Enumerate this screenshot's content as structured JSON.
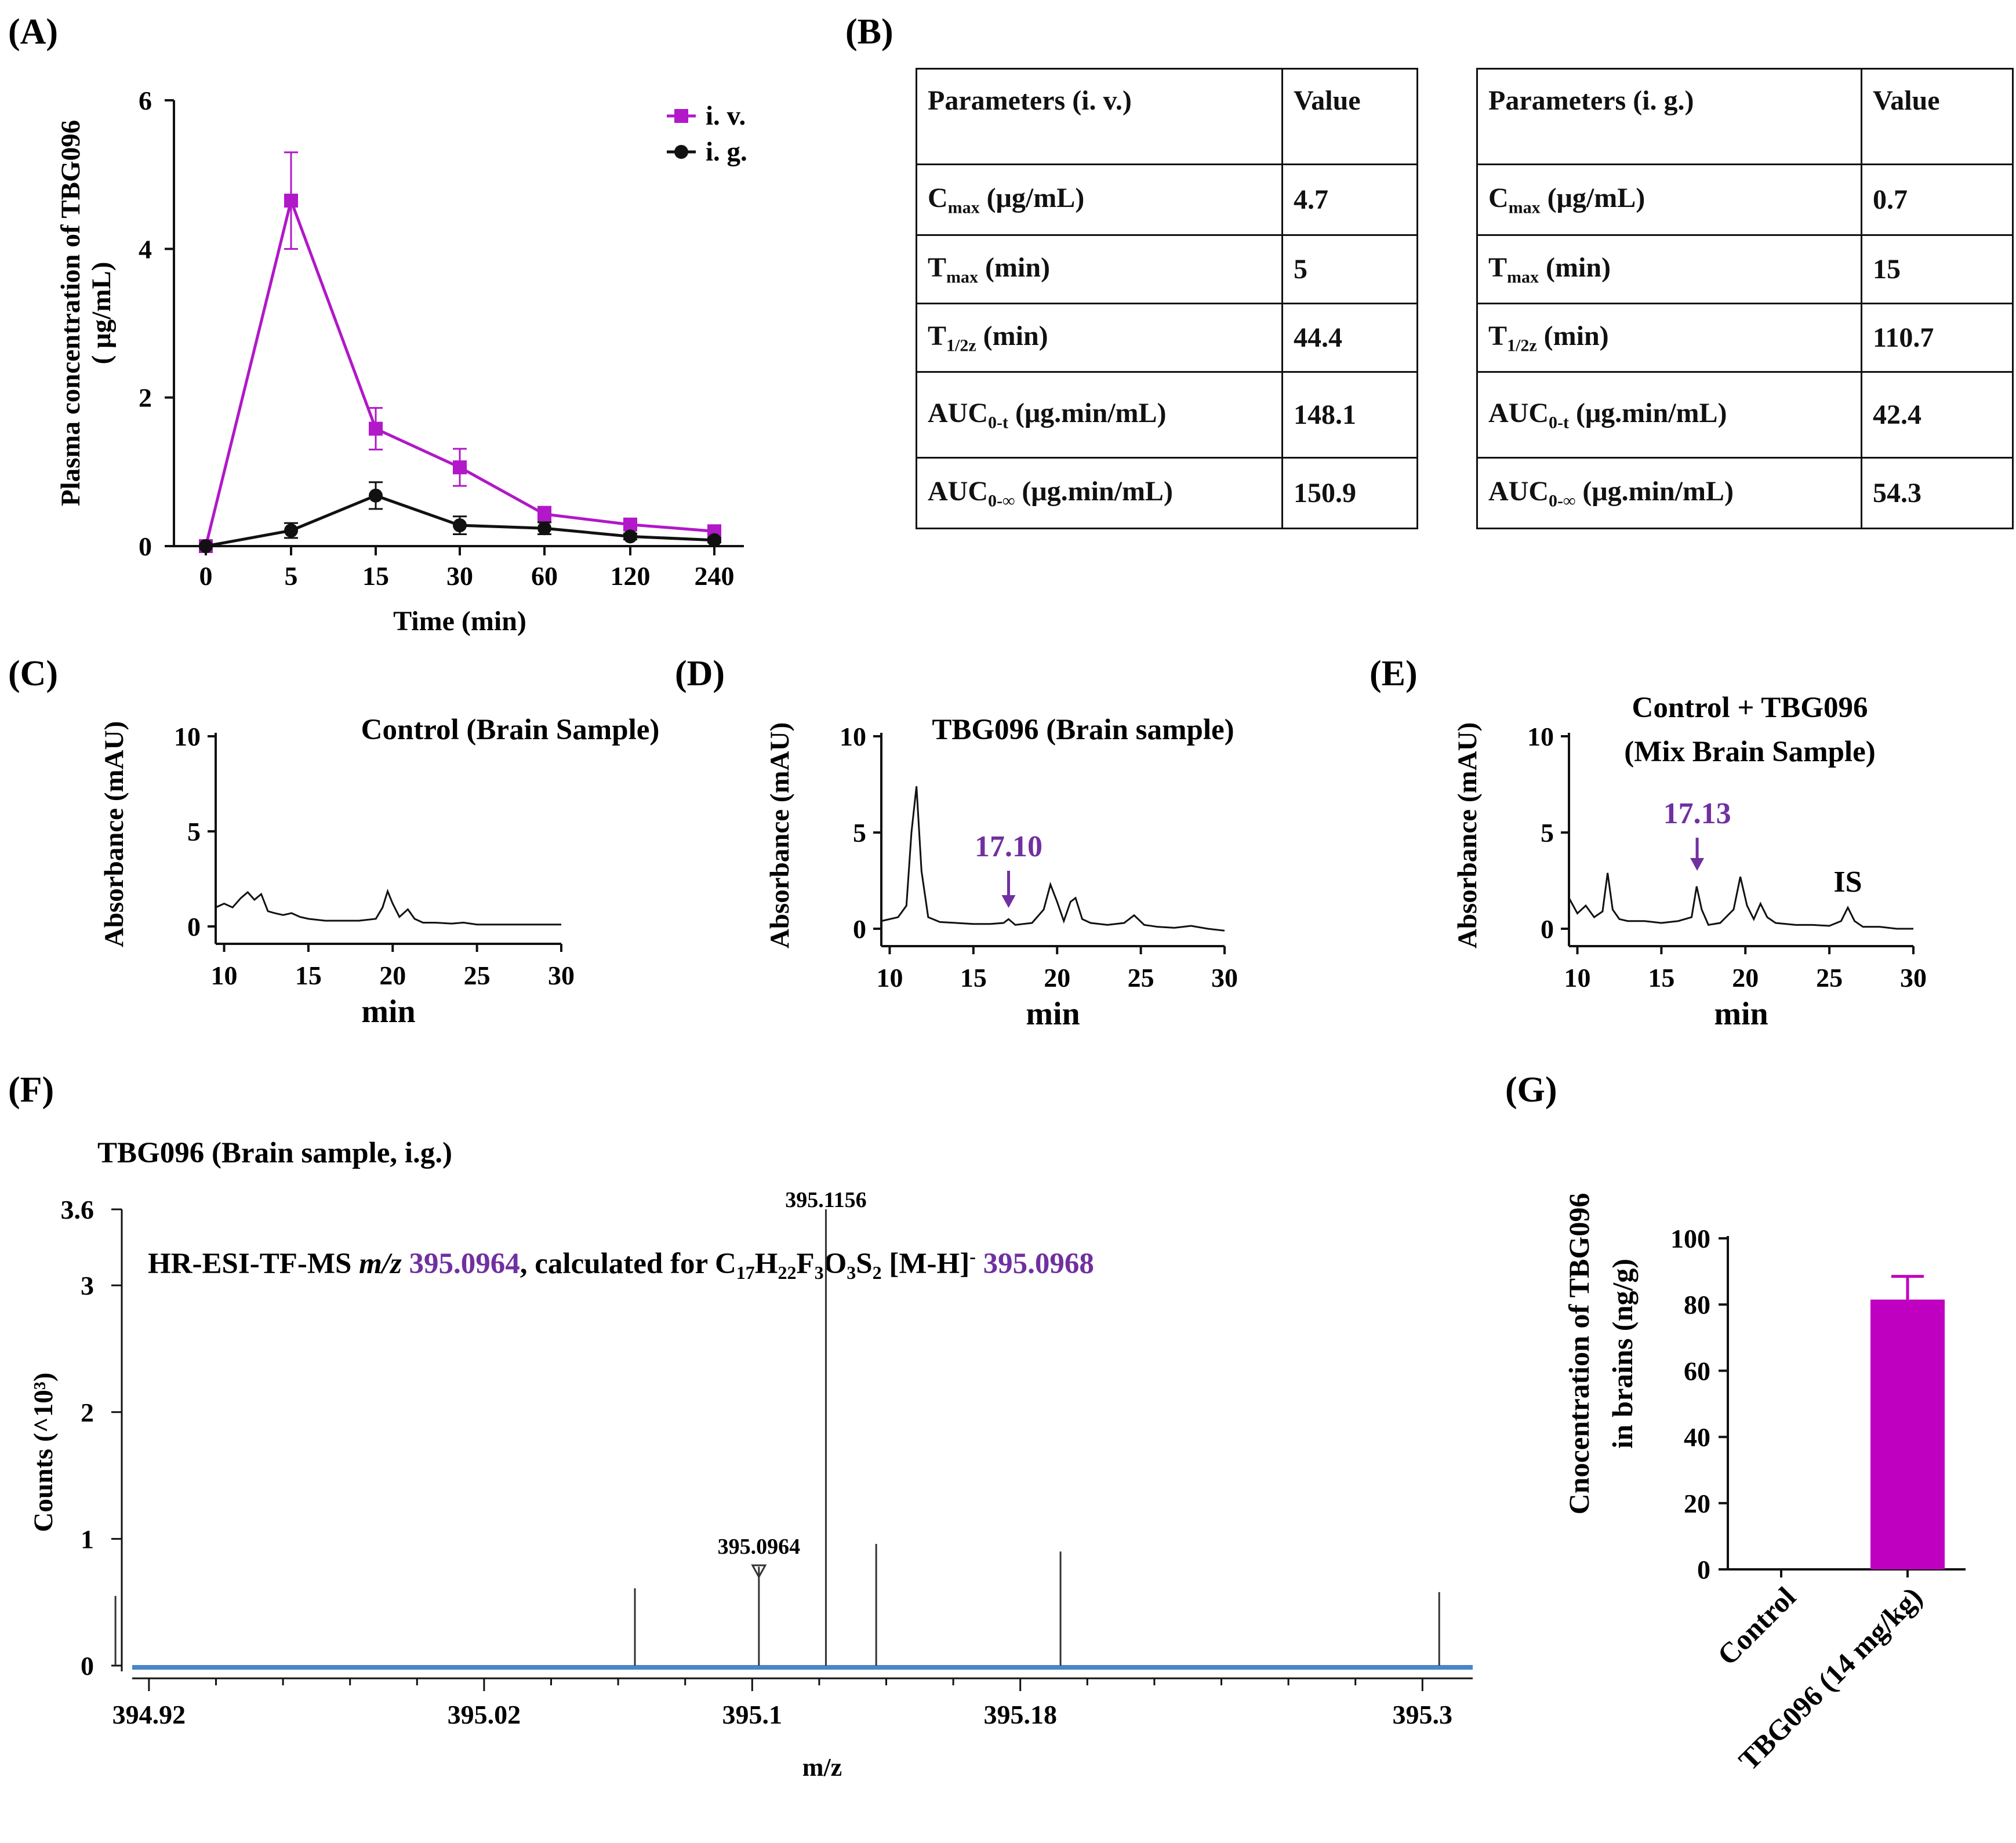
{
  "colors": {
    "iv": "#B118C8",
    "ig": "#111111",
    "annotation": "#7030A0",
    "bar": "#C000C0",
    "baseline": "#4A86C8"
  },
  "panels": {
    "A": "(A)",
    "B": "(B)",
    "C": "(C)",
    "D": "(D)",
    "E": "(E)",
    "F": "(F)",
    "G": "(G)"
  },
  "table_iv": {
    "header": [
      "Parameters (i. v.)",
      "Value"
    ],
    "rows": [
      {
        "name": "C",
        "sub": "max",
        "unit": " (μg/mL)",
        "value": "4.7"
      },
      {
        "name": "T",
        "sub": "max",
        "unit": " (min)",
        "value": "5"
      },
      {
        "name": "T",
        "sub": "1/2z",
        "unit": " (min)",
        "value": "44.4"
      },
      {
        "name": "AUC",
        "sub": "0-t",
        "unit": " (μg.min/mL)",
        "value": "148.1"
      },
      {
        "name": "AUC",
        "sub": "0-∞",
        "unit": " (μg.min/mL)",
        "value": "150.9"
      }
    ]
  },
  "table_ig": {
    "header": [
      "Parameters (i. g.)",
      "Value"
    ],
    "rows": [
      {
        "name": "C",
        "sub": "max",
        "unit": " (μg/mL)",
        "value": "0.7"
      },
      {
        "name": "T",
        "sub": "max",
        "unit": " (min)",
        "value": "15"
      },
      {
        "name": "T",
        "sub": "1/2z",
        "unit": " (min)",
        "value": "110.7"
      },
      {
        "name": "AUC",
        "sub": "0-t",
        "unit": " (μg.min/mL)",
        "value": "42.4"
      },
      {
        "name": "AUC",
        "sub": "0-∞",
        "unit": " (μg.min/mL)",
        "value": "54.3"
      }
    ]
  },
  "chart_data": [
    {
      "panel": "A",
      "type": "line",
      "xlabel": "Time (min)",
      "ylabel_line1": "Plasma concentration of TBG096",
      "ylabel_line2": "( μg/mL)",
      "categories": [
        "0",
        "5",
        "15",
        "30",
        "60",
        "120",
        "240"
      ],
      "ylim": [
        0,
        6
      ],
      "yticks": [
        0,
        2,
        4,
        6
      ],
      "legend_position": "top-right",
      "series": [
        {
          "name": "i. v.",
          "marker": "square",
          "values": [
            0,
            4.65,
            1.58,
            1.06,
            0.43,
            0.29,
            0.2
          ],
          "errors": [
            0,
            0.65,
            0.28,
            0.25,
            0.1,
            0.05,
            0.04
          ]
        },
        {
          "name": "i. g.",
          "marker": "circle",
          "values": [
            0,
            0.21,
            0.68,
            0.28,
            0.24,
            0.13,
            0.08
          ],
          "errors": [
            0,
            0.1,
            0.18,
            0.12,
            0.08,
            0.04,
            0.03
          ]
        }
      ]
    },
    {
      "panel": "C",
      "type": "line",
      "title": "Control (Brain Sample)",
      "xlabel": "min",
      "ylabel": "Absorbance (mAU)",
      "xlim": [
        9.5,
        30
      ],
      "xticks": [
        10,
        15,
        20,
        25,
        30
      ],
      "ylim": [
        -0.5,
        10
      ],
      "yticks": [
        0,
        5,
        10
      ],
      "x": [
        9.5,
        10,
        10.5,
        11,
        11.4,
        11.8,
        12.2,
        12.6,
        13,
        13.5,
        14,
        14.5,
        15,
        16,
        17,
        18,
        19,
        19.4,
        19.7,
        20,
        20.4,
        20.9,
        21.3,
        21.8,
        22.5,
        23.5,
        24.2,
        25,
        27,
        28,
        30
      ],
      "values": [
        1.0,
        1.2,
        1.0,
        1.5,
        1.8,
        1.4,
        1.7,
        0.8,
        0.7,
        0.6,
        0.7,
        0.5,
        0.4,
        0.3,
        0.3,
        0.3,
        0.4,
        1.0,
        1.85,
        1.2,
        0.5,
        0.9,
        0.4,
        0.2,
        0.2,
        0.15,
        0.2,
        0.1,
        0.1,
        0.1,
        0.1
      ]
    },
    {
      "panel": "D",
      "type": "line",
      "title": "TBG096 (Brain sample)",
      "xlabel": "min",
      "ylabel": "Absorbance (mAU)",
      "annotation": "17.10",
      "annotation_x": 17.1,
      "xlim": [
        9.5,
        30
      ],
      "xticks": [
        10,
        15,
        20,
        25,
        30
      ],
      "ylim": [
        -0.5,
        10
      ],
      "yticks": [
        0,
        5,
        10
      ],
      "x": [
        9.5,
        10.5,
        11,
        11.3,
        11.6,
        11.9,
        12.3,
        13,
        14,
        15,
        16,
        16.8,
        17.1,
        17.5,
        18.5,
        19.2,
        19.6,
        20,
        20.4,
        20.8,
        21.1,
        21.5,
        22,
        23,
        24,
        24.6,
        25.2,
        26,
        27,
        28,
        29,
        30
      ],
      "values": [
        0.4,
        0.6,
        1.2,
        5.0,
        7.4,
        3.0,
        0.6,
        0.35,
        0.3,
        0.25,
        0.25,
        0.3,
        0.5,
        0.2,
        0.3,
        1.0,
        2.3,
        1.4,
        0.4,
        1.4,
        1.6,
        0.5,
        0.3,
        0.2,
        0.3,
        0.7,
        0.2,
        0.1,
        0.05,
        0.15,
        0.0,
        -0.1
      ]
    },
    {
      "panel": "E",
      "type": "line",
      "title_line1": "Control + TBG096",
      "title_line2": "(Mix Brain Sample)",
      "xlabel": "min",
      "ylabel": "Absorbance (mAU)",
      "annotations": [
        {
          "text": "17.13",
          "x": 17.13
        }
      ],
      "peak_label": "IS",
      "peak_label_x": 26.1,
      "xlim": [
        9.5,
        30
      ],
      "xticks": [
        10,
        15,
        20,
        25,
        30
      ],
      "ylim": [
        -0.5,
        10
      ],
      "yticks": [
        0,
        5,
        10
      ],
      "x": [
        9.5,
        10,
        10.5,
        11,
        11.5,
        11.8,
        12.1,
        12.5,
        13,
        14,
        15,
        16,
        16.8,
        17.1,
        17.4,
        17.8,
        18.5,
        19.3,
        19.7,
        20.1,
        20.5,
        20.9,
        21.3,
        21.8,
        23,
        24,
        25,
        25.7,
        26.1,
        26.5,
        27,
        28,
        29,
        30
      ],
      "values": [
        1.6,
        0.8,
        1.2,
        0.6,
        0.9,
        2.9,
        1.0,
        0.5,
        0.4,
        0.4,
        0.3,
        0.4,
        0.6,
        2.2,
        1.0,
        0.2,
        0.3,
        1.0,
        2.7,
        1.2,
        0.5,
        1.3,
        0.6,
        0.3,
        0.2,
        0.2,
        0.15,
        0.4,
        1.1,
        0.4,
        0.1,
        0.1,
        0.0,
        0.0
      ]
    },
    {
      "panel": "F",
      "type": "bar",
      "title": "TBG096 (Brain sample, i.g.)",
      "annotation_parts": {
        "prefix": "HR-ESI-TF-MS ",
        "mz": "m/z",
        "measured": " 395.0964",
        "mid": ", calculated for C",
        "s17": "17",
        "h": "H",
        "s22": "22",
        "f": "F",
        "s3a": "3",
        "o": "O",
        "s3b": "3",
        "sS": "S",
        "s2": "2",
        "mh": " [M-H]",
        "minus": "-",
        "calc": " 395.0968"
      },
      "xlabel": "m/z",
      "ylabel": "Counts (^10³)",
      "xlim": [
        394.915,
        395.315
      ],
      "xticks": [
        "394.92",
        "395.02",
        "395.1",
        "395.18",
        "395.3"
      ],
      "ylim": [
        0,
        3.6
      ],
      "yticks": [
        "0",
        "1",
        "2",
        "3",
        "3.6"
      ],
      "x": [
        394.91,
        395.065,
        395.102,
        395.122,
        395.137,
        395.192,
        395.305
      ],
      "values": [
        0.55,
        0.61,
        0.78,
        3.6,
        0.96,
        0.9,
        0.58
      ],
      "peak_labels": [
        "395.1156",
        "395.0964"
      ]
    },
    {
      "panel": "G",
      "type": "bar",
      "ylabel_line1": "Cnocentration of TBG096",
      "ylabel_line2": "in brains (ng/g)",
      "categories": [
        "Control",
        "TBG096 (14 mg/kg)"
      ],
      "values": [
        0,
        81.5
      ],
      "errors": [
        0,
        7
      ],
      "ylim": [
        0,
        100
      ],
      "yticks": [
        0,
        20,
        40,
        60,
        80,
        100
      ]
    }
  ]
}
